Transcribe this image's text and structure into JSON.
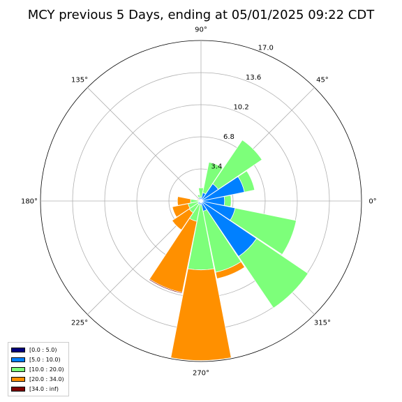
{
  "chart_data": {
    "type": "windrose",
    "title": "MCY previous 5 Days, ending at 05/01/2025 09:22 CDT",
    "station": "MCY",
    "angle_ticks": [
      {
        "deg": 0,
        "label": "0°"
      },
      {
        "deg": 45,
        "label": "45°"
      },
      {
        "deg": 90,
        "label": "90°"
      },
      {
        "deg": 135,
        "label": "135°"
      },
      {
        "deg": 180,
        "label": "180°"
      },
      {
        "deg": 225,
        "label": "225°"
      },
      {
        "deg": 270,
        "label": "270°"
      },
      {
        "deg": 315,
        "label": "315°"
      }
    ],
    "radial_ticks": [
      {
        "value": 3.4,
        "label": "3.4"
      },
      {
        "value": 6.8,
        "label": "6.8"
      },
      {
        "value": 10.2,
        "label": "10.2"
      },
      {
        "value": 13.6,
        "label": "13.6"
      },
      {
        "value": 17.0,
        "label": "17.0"
      }
    ],
    "rmax": 17.0,
    "grid": true,
    "legend_position": "bottom-left",
    "bins": [
      {
        "label": "[0.0 : 5.0)",
        "color": "#000080"
      },
      {
        "label": "[5.0 : 10.0)",
        "color": "#0080ff"
      },
      {
        "label": "[10.0 : 20.0)",
        "color": "#7dff7a"
      },
      {
        "label": "[20.0 : 34.0)",
        "color": "#ff9000"
      },
      {
        "label": "[34.0 : inf)",
        "color": "#800000"
      }
    ],
    "sector_width_deg": 22.5,
    "sectors": [
      {
        "angle": 0,
        "values": [
          0.1,
          2.4,
          0.7,
          0,
          0
        ]
      },
      {
        "angle": 22.5,
        "values": [
          0.1,
          4.6,
          1.1,
          0,
          0
        ]
      },
      {
        "angle": 45,
        "values": [
          0.1,
          2.1,
          5.6,
          0,
          0
        ]
      },
      {
        "angle": 67.5,
        "values": [
          0.1,
          0.8,
          3.3,
          0,
          0
        ]
      },
      {
        "angle": 90,
        "values": [
          0.1,
          0.3,
          1.0,
          0,
          0
        ]
      },
      {
        "angle": 112.5,
        "values": [
          0.1,
          0.3,
          0.3,
          0,
          0
        ]
      },
      {
        "angle": 135,
        "values": [
          0.1,
          0.1,
          0,
          0,
          0
        ]
      },
      {
        "angle": 157.5,
        "values": [
          0.1,
          0.1,
          0.1,
          0.1,
          0
        ]
      },
      {
        "angle": 180,
        "values": [
          0.1,
          0.2,
          0.8,
          1.4,
          0
        ]
      },
      {
        "angle": 202.5,
        "values": [
          0.1,
          0.2,
          1.1,
          1.7,
          0
        ]
      },
      {
        "angle": 225,
        "values": [
          0.1,
          0.3,
          1.1,
          2.2,
          0
        ]
      },
      {
        "angle": 247.5,
        "values": [
          0.1,
          0.3,
          1.8,
          7.7,
          0.1
        ]
      },
      {
        "angle": 270,
        "values": [
          0.1,
          0.3,
          6.9,
          9.6,
          0
        ]
      },
      {
        "angle": 292.5,
        "values": [
          0.1,
          1.0,
          6.6,
          0.7,
          0
        ]
      },
      {
        "angle": 315,
        "values": [
          0.1,
          7.0,
          6.6,
          0,
          0
        ]
      },
      {
        "angle": 337.5,
        "values": [
          0.1,
          3.6,
          6.6,
          0,
          0
        ]
      }
    ]
  }
}
